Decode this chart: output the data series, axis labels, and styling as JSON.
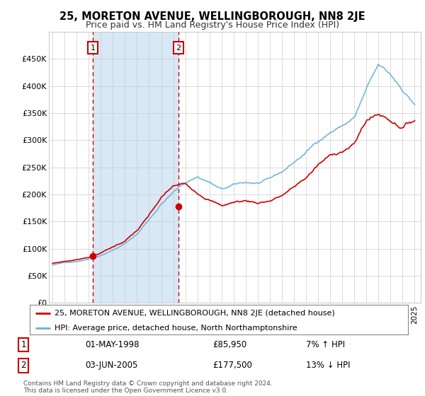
{
  "title_line1": "25, MORETON AVENUE, WELLINGBOROUGH, NN8 2JE",
  "title_line2": "Price paid vs. HM Land Registry's House Price Index (HPI)",
  "legend_red": "25, MORETON AVENUE, WELLINGBOROUGH, NN8 2JE (detached house)",
  "legend_blue": "HPI: Average price, detached house, North Northamptonshire",
  "annotation1_label": "1",
  "annotation1_date": "01-MAY-1998",
  "annotation1_price": "£85,950",
  "annotation1_hpi": "7% ↑ HPI",
  "annotation2_label": "2",
  "annotation2_date": "03-JUN-2005",
  "annotation2_price": "£177,500",
  "annotation2_hpi": "13% ↓ HPI",
  "footnote": "Contains HM Land Registry data © Crown copyright and database right 2024.\nThis data is licensed under the Open Government Licence v3.0.",
  "red_color": "#cc0000",
  "blue_color": "#6baed6",
  "shade_color": "#d8e8f5",
  "background_color": "#ffffff",
  "plot_bg_color": "#ffffff",
  "grid_color": "#cccccc",
  "sale1_x": 1998.33,
  "sale1_y": 85950,
  "sale2_x": 2005.42,
  "sale2_y": 177500,
  "ylim": [
    0,
    500000
  ],
  "yticks": [
    0,
    50000,
    100000,
    150000,
    200000,
    250000,
    300000,
    350000,
    400000,
    450000
  ],
  "xlim_min": 1994.7,
  "xlim_max": 2025.5
}
